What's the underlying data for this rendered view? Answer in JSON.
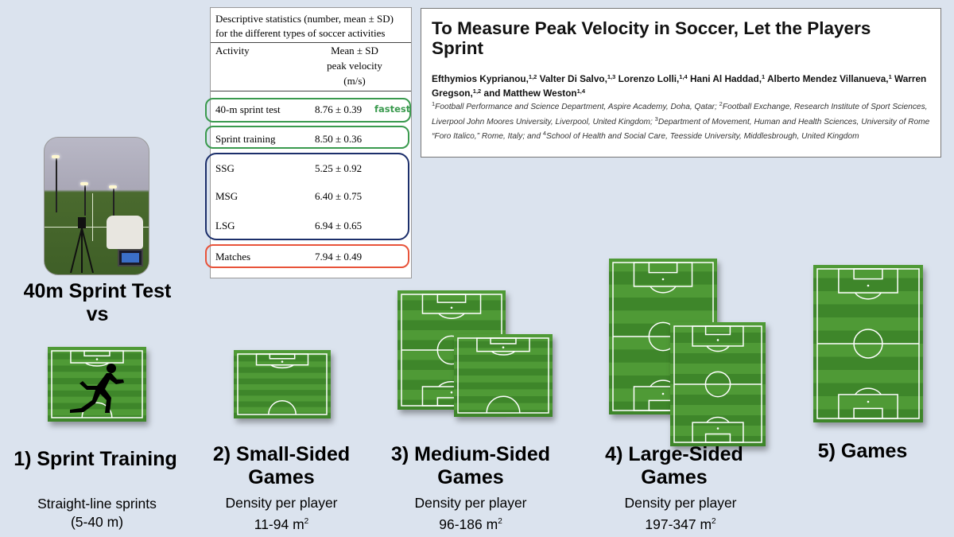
{
  "table": {
    "caption_line1": "Descriptive statistics (number, mean ± SD)",
    "caption_line2": "for the different types of soccer activities",
    "col_activity": "Activity",
    "col_value_line1": "Mean ± SD",
    "col_value_line2": "peak velocity",
    "col_value_line3": "(m/s)",
    "rows": [
      {
        "activity": "40-m sprint test",
        "value": "8.76 ± 0.39"
      },
      {
        "activity": "Sprint training",
        "value": "8.50 ± 0.36"
      },
      {
        "activity": "SSG",
        "value": "5.25 ± 0.92"
      },
      {
        "activity": "MSG",
        "value": "6.40 ± 0.75"
      },
      {
        "activity": "LSG",
        "value": "6.94 ± 0.65"
      },
      {
        "activity": "Matches",
        "value": "7.94 ± 0.49"
      }
    ],
    "fastest_note": "fastest",
    "colors": {
      "green": "#3a9a4e",
      "navy": "#1c2f6b",
      "red": "#e8533a"
    }
  },
  "paper": {
    "title": "To Measure Peak Velocity in Soccer, Let the Players Sprint",
    "authors": [
      {
        "name": "Efthymios Kyprianou,",
        "sup": "1,2"
      },
      {
        "name": " Valter Di Salvo,",
        "sup": "1,3"
      },
      {
        "name": " Lorenzo Lolli,",
        "sup": "1,4"
      },
      {
        "name": " Hani Al Haddad,",
        "sup": "1"
      },
      {
        "name": " Alberto Mendez Villanueva,",
        "sup": "1"
      },
      {
        "name": " Warren Gregson,",
        "sup": "1,2"
      },
      {
        "name": " and Matthew Weston",
        "sup": "1,4"
      }
    ],
    "affiliations": [
      {
        "sup": "1",
        "text": "Football Performance and Science Department, Aspire Academy, Doha, Qatar; "
      },
      {
        "sup": "2",
        "text": "Football Exchange, Research Institute of Sport Sciences, Liverpool John Moores University, Liverpool, United Kingdom; "
      },
      {
        "sup": "3",
        "text": "Department of Movement, Human and Health Sciences, University of Rome “Foro Italico,” Rome, Italy; and "
      },
      {
        "sup": "4",
        "text": "School of Health and Social Care, Teesside University, Middlesbrough, United Kingdom"
      }
    ]
  },
  "test_label": {
    "line1": "40m Sprint Test",
    "line2": "vs"
  },
  "activities": [
    {
      "title_line1": "1) Sprint Training",
      "title_line2": "",
      "desc_line1": "Straight-line sprints",
      "desc_line2": "(5-40 m)",
      "sup": ""
    },
    {
      "title_line1": "2) Small-Sided",
      "title_line2": "Games",
      "desc_line1": "Density per player",
      "desc_line2": "11-94 m",
      "sup": "2"
    },
    {
      "title_line1": "3) Medium-Sided",
      "title_line2": "Games",
      "desc_line1": "Density per player",
      "desc_line2": "96-186 m",
      "sup": "2"
    },
    {
      "title_line1": "4) Large-Sided",
      "title_line2": "Games",
      "desc_line1": "Density per player",
      "desc_line2": "197-347 m",
      "sup": "2"
    },
    {
      "title_line1": "5) Games",
      "title_line2": "",
      "desc_line1": "",
      "desc_line2": "",
      "sup": ""
    }
  ],
  "pitch_colors": {
    "light": "#4f9a36",
    "dark": "#3e862a",
    "line": "#ffffff"
  }
}
